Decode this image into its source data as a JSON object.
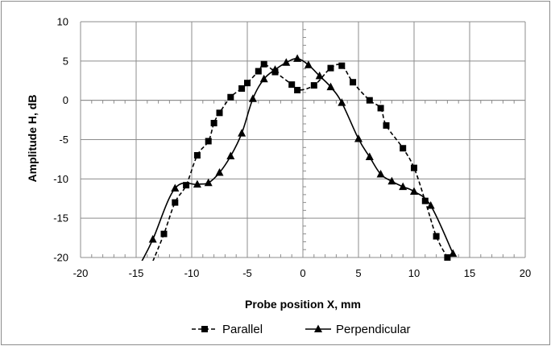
{
  "chart_data": {
    "type": "line",
    "title": "",
    "xlabel": "Probe position X, mm",
    "ylabel": "Amplitude H, dB",
    "xlim": [
      -20,
      20
    ],
    "ylim": [
      -20,
      10
    ],
    "xticks": [
      "-20",
      "-15",
      "-10",
      "-5",
      "0",
      "5",
      "10",
      "15",
      "20"
    ],
    "yticks": [
      "-20",
      "-15",
      "-10",
      "-5",
      "0",
      "5",
      "10"
    ],
    "grid": true,
    "legend_position": "bottom",
    "series": [
      {
        "name": "Parallel",
        "line_style": "dashed",
        "marker": "square",
        "color": "#000000",
        "x": [
          -13.5,
          -12.5,
          -11.5,
          -10.5,
          -9.5,
          -8.5,
          -8,
          -7.5,
          -6.5,
          -5.5,
          -5,
          -4,
          -3.5,
          -2.5,
          -1,
          -0.5,
          1,
          2.5,
          3.5,
          4.5,
          6,
          7,
          7.5,
          9,
          10,
          11,
          12,
          13
        ],
        "y": [
          -20.5,
          -17,
          -13,
          -10.8,
          -7,
          -5.2,
          -2.9,
          -1.6,
          0.4,
          1.5,
          2.2,
          3.7,
          4.6,
          3.6,
          2,
          1.3,
          1.9,
          4.1,
          4.4,
          2.3,
          0,
          -1,
          -3.2,
          -6.1,
          -8.6,
          -12.8,
          -17.3,
          -20
        ]
      },
      {
        "name": "Perpendicular",
        "line_style": "solid",
        "marker": "triangle",
        "color": "#000000",
        "x": [
          -14.5,
          -13.5,
          -11.5,
          -9.5,
          -8.5,
          -7.5,
          -6.5,
          -5.5,
          -4.5,
          -3.5,
          -2.5,
          -1.5,
          -0.5,
          0.5,
          1.5,
          2.5,
          3.5,
          5,
          6,
          7,
          8,
          9,
          10,
          11.5,
          13.5
        ],
        "y": [
          -20.5,
          -17.7,
          -11.2,
          -10.7,
          -10.5,
          -9.2,
          -7.1,
          -4.2,
          0.2,
          2.7,
          3.9,
          4.8,
          5.3,
          4.5,
          3.1,
          1.7,
          -0.3,
          -4.9,
          -7.2,
          -9.4,
          -10.3,
          -11,
          -11.6,
          -13.4,
          -19.5
        ]
      }
    ]
  }
}
